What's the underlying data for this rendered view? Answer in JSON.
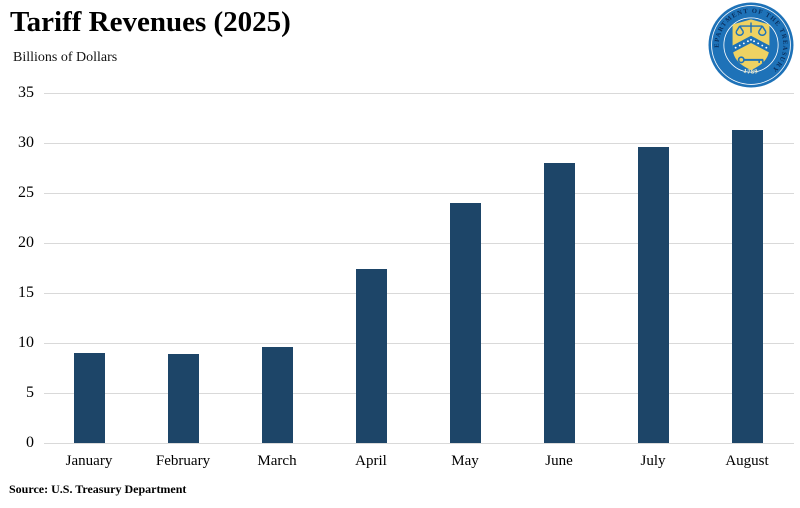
{
  "header": {
    "title": "Tariff Revenues (2025)",
    "subtitle": "Billions of Dollars"
  },
  "seal": {
    "ring_text": "THE DEPARTMENT OF THE TREASURY",
    "year": "1789",
    "blue": "#1e72b8",
    "dark_blue": "#0a2e5c",
    "gold": "#eed262"
  },
  "chart_data": {
    "type": "bar",
    "title": "Tariff Revenues (2025)",
    "ylabel": "Billions of Dollars",
    "categories": [
      "January",
      "February",
      "March",
      "April",
      "May",
      "June",
      "July",
      "August"
    ],
    "values": [
      9.0,
      8.9,
      9.6,
      17.4,
      24.0,
      28.0,
      29.6,
      31.3
    ],
    "ylim": [
      0,
      35
    ],
    "ytick_step": 5,
    "grid": true,
    "legend": "none",
    "bar_color": "#1d4568",
    "gridline_color": "#d9d9d9"
  },
  "footer": {
    "source": "Source: U.S. Treasury Department"
  }
}
